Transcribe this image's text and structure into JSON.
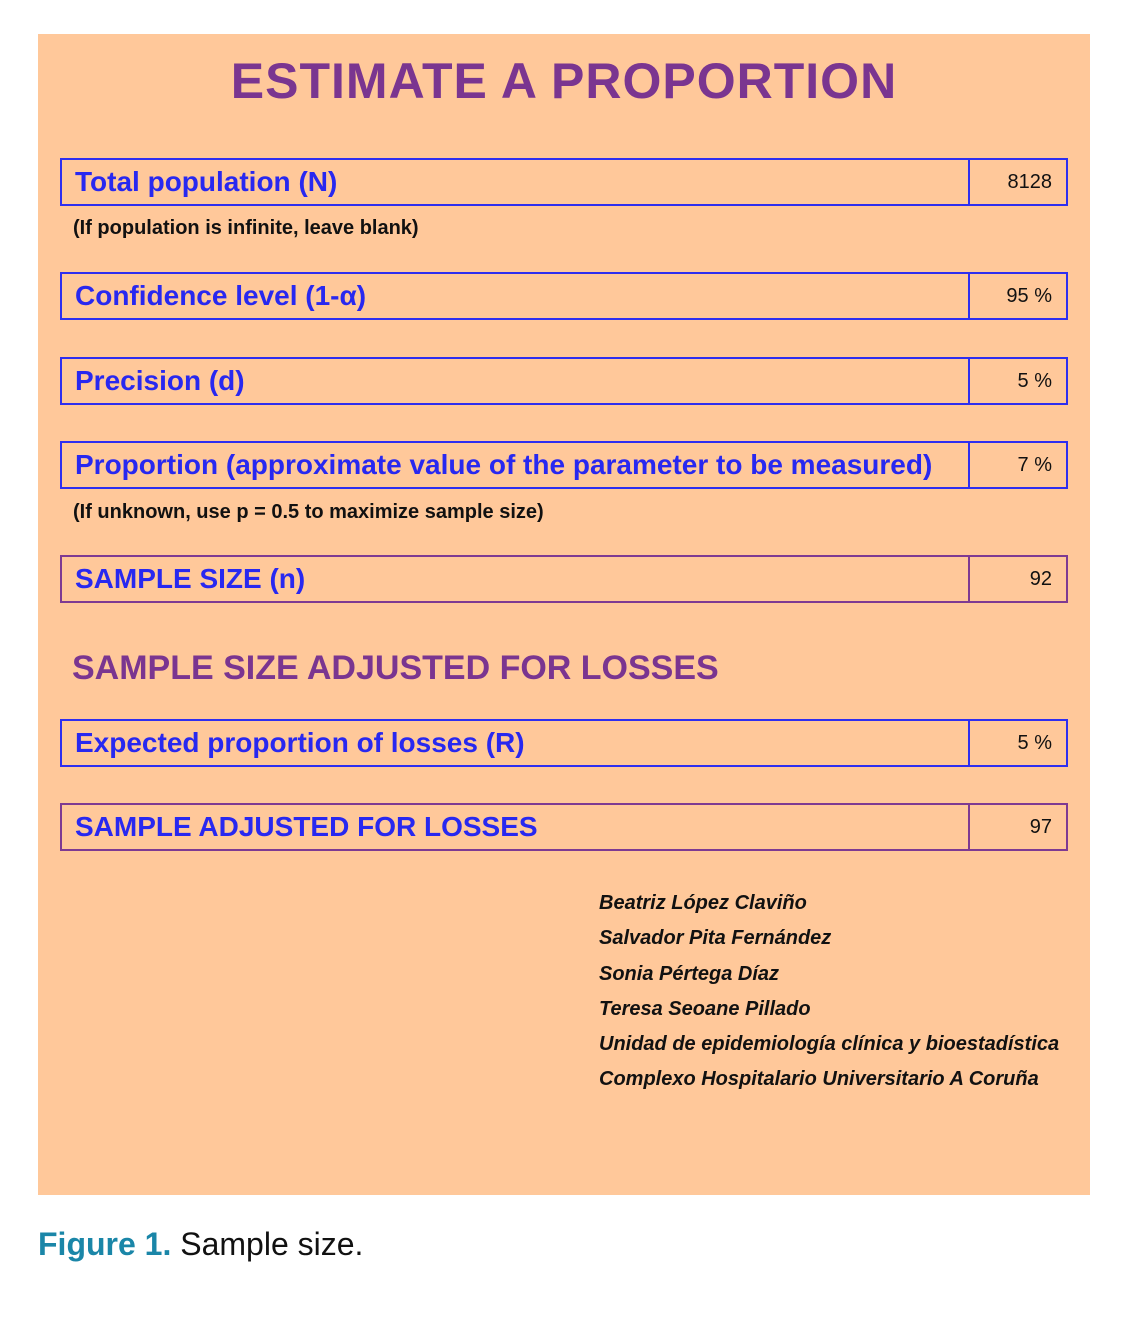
{
  "title": "ESTIMATE A PROPORTION",
  "rows": [
    {
      "label": "Total population (N)",
      "value": "8128"
    },
    {
      "label": "Confidence level (1-α)",
      "value": "95 %"
    },
    {
      "label": "Precision (d)",
      "value": "5 %"
    },
    {
      "label": "Proportion (approximate value of the parameter to be measured)",
      "value": "7 %"
    },
    {
      "label": "SAMPLE SIZE (n)",
      "value": "92"
    }
  ],
  "notes": {
    "population": "(If population is infinite, leave blank)",
    "proportion": "(If unknown, use p = 0.5 to maximize sample size)"
  },
  "losses": {
    "heading": "SAMPLE SIZE ADJUSTED FOR LOSSES",
    "rows": [
      {
        "label": "Expected proportion of losses (R)",
        "value": "5 %"
      },
      {
        "label": "SAMPLE ADJUSTED FOR LOSSES",
        "value": "97"
      }
    ]
  },
  "authors": [
    "Beatriz López Claviño",
    "Salvador Pita Fernández",
    "Sonia Pértega Díaz",
    "Teresa Seoane Pillado",
    "Unidad de epidemiología clínica y bioestadística",
    "Complexo Hospitalario Universitario A Coruña"
  ],
  "caption": {
    "label": "Figure 1.",
    "text": " Sample size."
  }
}
